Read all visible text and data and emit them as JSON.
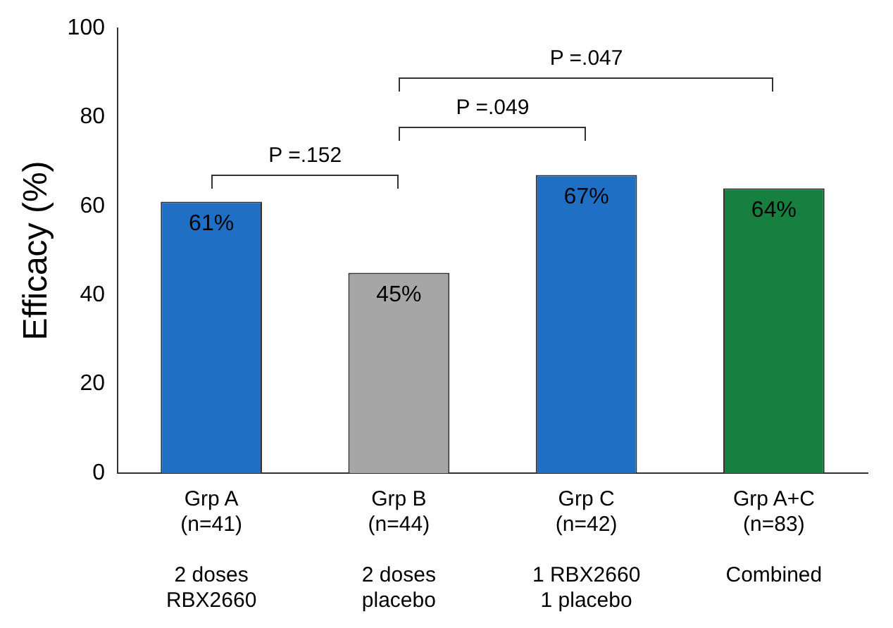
{
  "chart_data": {
    "type": "bar",
    "ylabel": "Efficacy (%)",
    "categories": [
      "Grp A\n(n=41)\n\n2 doses\nRBX2660",
      "Grp B\n(n=44)\n\n2 doses\nplacebo",
      "Grp C\n(n=42)\n\n1 RBX2660\n1 placebo",
      "Grp A+C\n(n=83)\n\nCombined"
    ],
    "values": [
      61,
      45,
      67,
      64
    ],
    "colors": [
      "#1f6fc5",
      "#a6a6a6",
      "#1f6fc5",
      "#178040"
    ],
    "value_labels": [
      "61%",
      "45%",
      "67%",
      "64%"
    ],
    "ylim": [
      0,
      100
    ],
    "yticks": [
      0,
      20,
      40,
      60,
      80,
      100
    ],
    "grid": false,
    "legend": false,
    "annotations": [
      "P =.152",
      "P =.049",
      "P =.047"
    ]
  }
}
